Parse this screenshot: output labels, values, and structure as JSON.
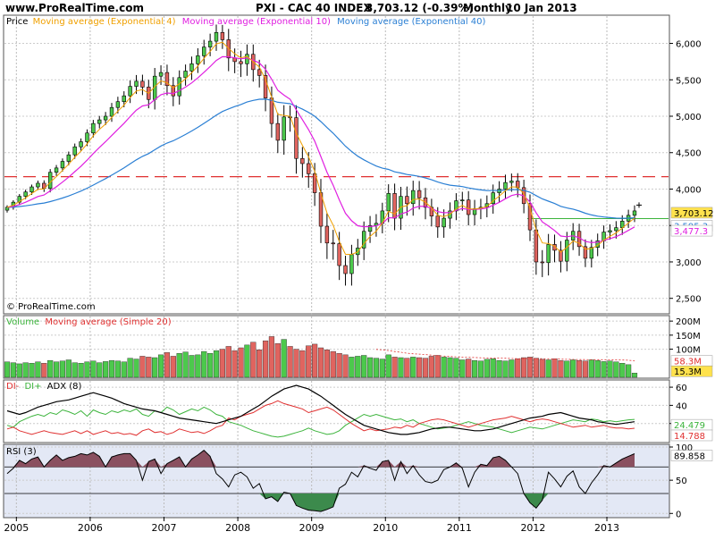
{
  "header": {
    "site": "www.ProRealTime.com",
    "title": "PXI - CAC 40 INDEX",
    "last": "3,703.12 (-0.39%)",
    "period": "Monthly",
    "date": "10 Jan 2013"
  },
  "colors": {
    "up": "#4cc94c",
    "down": "#e0645f",
    "ema4": "#f0a000",
    "ema10": "#e020e0",
    "ema40": "#2a7fd4",
    "resistance": "#e03030",
    "support": "#3cb43c",
    "plus_di": "#3cb43c",
    "minus_di": "#e03030",
    "adx": "#000000",
    "rsi_bg": "#e3e8f5",
    "rsi_fill": "#8a5060"
  },
  "chart_data": [
    {
      "type": "candlestick",
      "panel": "price",
      "legend": [
        "Price",
        "Moving average (Exponential 4)",
        "Moving average (Exponential 10)",
        "Moving average (Exponential 40)"
      ],
      "copyright": "© ProRealTime.com",
      "x_labels": [
        "2005",
        "2006",
        "2007",
        "2008",
        "2009",
        "2010",
        "2011",
        "2012",
        "2013"
      ],
      "y_ticks": [
        {
          "value": 6000,
          "label": "6,000"
        },
        {
          "value": 5500,
          "label": "5,500"
        },
        {
          "value": 5000,
          "label": "5,000"
        },
        {
          "value": 4500,
          "label": "4,500"
        },
        {
          "value": 4000,
          "label": "4,000"
        },
        {
          "value": 3500,
          "label": "3,500"
        },
        {
          "value": 3000,
          "label": "3,000"
        },
        {
          "value": 2500,
          "label": "2,500"
        }
      ],
      "ylim": [
        2300,
        6350
      ],
      "start": "2004-11",
      "close": [
        3750,
        3820,
        3900,
        3960,
        4030,
        4080,
        4010,
        4230,
        4290,
        4380,
        4470,
        4580,
        4650,
        4770,
        4900,
        4950,
        5000,
        5120,
        5200,
        5280,
        5410,
        5480,
        5400,
        5230,
        5550,
        5600,
        5420,
        5280,
        5530,
        5620,
        5720,
        5830,
        5950,
        6030,
        6150,
        6050,
        5800,
        5750,
        5720,
        5850,
        5640,
        5560,
        5250,
        4900,
        4670,
        4990,
        4980,
        4420,
        4350,
        4210,
        3950,
        3490,
        3260,
        3250,
        2950,
        2840,
        3100,
        3190,
        3420,
        3500,
        3530,
        3700,
        3940,
        3600,
        3900,
        3800,
        3980,
        3880,
        3750,
        3630,
        3480,
        3600,
        3700,
        3840,
        3850,
        3650,
        3730,
        3750,
        3800,
        3950,
        4000,
        4090,
        4110,
        4020,
        3800,
        3440,
        3000,
        2990,
        3240,
        3160,
        3010,
        3300,
        3420,
        3210,
        3050,
        3200,
        3290,
        3410,
        3430,
        3470,
        3560,
        3640,
        3700
      ],
      "high_low_pad": [
        60,
        60,
        70,
        70,
        70,
        80,
        90,
        100,
        90,
        90,
        100,
        100,
        100,
        110,
        110,
        120,
        130,
        140,
        150,
        140,
        180,
        190,
        200,
        220,
        250,
        220,
        240,
        260,
        220,
        200,
        220,
        230,
        220,
        230,
        240,
        230,
        330,
        290,
        330,
        300,
        300,
        300,
        330,
        350,
        320,
        360,
        350,
        380,
        350,
        350,
        330,
        420,
        400,
        400,
        360,
        300,
        300,
        280,
        300,
        290,
        280,
        250,
        280,
        300,
        290,
        300,
        300,
        290,
        300,
        260,
        270,
        270,
        260,
        230,
        250,
        270,
        270,
        260,
        250,
        250,
        240,
        240,
        230,
        240,
        240,
        280,
        320,
        360,
        320,
        300,
        280,
        250,
        250,
        230,
        220,
        230,
        220,
        200,
        190,
        200,
        180,
        170,
        170
      ],
      "ema4_end": 3595.3,
      "ema10_end": 3477.3,
      "ema40_end": 3595.3,
      "resistance": 4170,
      "support": 3595.3,
      "value_labels": {
        "last": "3,703.12",
        "ema40": "3,595.3",
        "ema10": "3,477.3"
      }
    },
    {
      "type": "bar",
      "panel": "volume",
      "legend": [
        "Volume",
        "Moving average (Simple 20)"
      ],
      "y_ticks": [
        {
          "value": 200,
          "label": "200M"
        },
        {
          "value": 150,
          "label": "150M"
        },
        {
          "value": 100,
          "label": "100M"
        }
      ],
      "ylim": [
        0,
        210
      ],
      "values": [
        55,
        52,
        48,
        52,
        50,
        55,
        50,
        60,
        55,
        58,
        62,
        52,
        50,
        55,
        58,
        52,
        56,
        60,
        58,
        55,
        68,
        65,
        75,
        72,
        70,
        80,
        88,
        75,
        85,
        90,
        78,
        80,
        92,
        85,
        95,
        100,
        110,
        95,
        105,
        115,
        125,
        98,
        130,
        145,
        120,
        135,
        110,
        100,
        95,
        112,
        118,
        105,
        98,
        92,
        85,
        80,
        72,
        75,
        78,
        70,
        68,
        65,
        80,
        72,
        70,
        68,
        72,
        70,
        68,
        75,
        78,
        72,
        70,
        68,
        62,
        65,
        60,
        58,
        64,
        66,
        60,
        58,
        62,
        66,
        70,
        72,
        68,
        64,
        62,
        66,
        60,
        58,
        62,
        60,
        58,
        62,
        60,
        56,
        58,
        55,
        50,
        45,
        15
      ],
      "ma20_points": [
        {
          "i": 75,
          "v": 80
        },
        {
          "i": 84,
          "v": 70
        },
        {
          "i": 102,
          "v": 58.3
        }
      ],
      "value_labels": {
        "ma": "58.3M",
        "last": "15.3M"
      }
    },
    {
      "type": "line",
      "panel": "adx",
      "legend": [
        "DI-",
        "DI+",
        "ADX (8)"
      ],
      "y_ticks": [
        {
          "value": 60,
          "label": "60"
        },
        {
          "value": 40,
          "label": "40"
        },
        {
          "value": 20,
          "label": "20"
        }
      ],
      "ylim": [
        0,
        65
      ],
      "series": [
        {
          "name": "DI+",
          "points": [
            18,
            16,
            22,
            25,
            28,
            30,
            28,
            32,
            30,
            35,
            33,
            30,
            34,
            28,
            35,
            32,
            30,
            34,
            32,
            35,
            33,
            36,
            30,
            28,
            34,
            32,
            38,
            35,
            30,
            33,
            36,
            34,
            38,
            35,
            30,
            28,
            22,
            20,
            18,
            15,
            12,
            10,
            8,
            6,
            5,
            6,
            8,
            10,
            12,
            15,
            12,
            10,
            8,
            9,
            12,
            18,
            22,
            26,
            30,
            28,
            30,
            28,
            26,
            24,
            25,
            22,
            24,
            20,
            18,
            16,
            14,
            15,
            16,
            18,
            20,
            22,
            20,
            18,
            17,
            16,
            14,
            12,
            10,
            12,
            14,
            16,
            15,
            14,
            16,
            18,
            20,
            22,
            24,
            23,
            22,
            25,
            24,
            22,
            23,
            22,
            23,
            24,
            24.479
          ]
        },
        {
          "name": "DI-",
          "points": [
            14,
            16,
            12,
            10,
            8,
            10,
            12,
            10,
            9,
            8,
            10,
            12,
            9,
            12,
            8,
            10,
            12,
            9,
            10,
            8,
            9,
            7,
            12,
            14,
            10,
            11,
            8,
            10,
            14,
            12,
            10,
            11,
            9,
            12,
            16,
            18,
            26,
            24,
            28,
            30,
            32,
            36,
            40,
            42,
            45,
            42,
            40,
            38,
            36,
            32,
            34,
            36,
            38,
            35,
            30,
            25,
            20,
            16,
            12,
            14,
            12,
            13,
            14,
            16,
            15,
            18,
            16,
            20,
            22,
            24,
            25,
            24,
            22,
            20,
            18,
            16,
            18,
            20,
            22,
            24,
            25,
            26,
            28,
            26,
            24,
            22,
            24,
            25,
            24,
            22,
            20,
            18,
            16,
            17,
            18,
            16,
            17,
            18,
            16,
            15,
            15,
            14,
            14.788
          ]
        },
        {
          "name": "ADX (8)",
          "points": [
            34,
            32,
            30,
            32,
            35,
            38,
            40,
            42,
            44,
            45,
            46,
            48,
            50,
            52,
            54,
            52,
            50,
            48,
            45,
            42,
            40,
            38,
            36,
            35,
            34,
            32,
            30,
            28,
            26,
            25,
            24,
            23,
            22,
            21,
            20,
            22,
            24,
            26,
            28,
            32,
            36,
            40,
            45,
            50,
            54,
            58,
            60,
            62,
            60,
            58,
            54,
            50,
            45,
            40,
            35,
            30,
            26,
            22,
            18,
            16,
            14,
            12,
            10,
            9,
            8,
            8,
            9,
            10,
            12,
            14,
            15,
            16,
            16,
            15,
            14,
            13,
            12,
            12,
            13,
            14,
            16,
            18,
            20,
            22,
            24,
            26,
            27,
            28,
            30,
            31,
            32,
            30,
            28,
            26,
            25,
            24,
            22,
            21,
            20,
            19,
            20,
            21,
            22
          ]
        }
      ],
      "value_labels": {
        "plus_di": "24.479",
        "minus_di": "14.788"
      }
    },
    {
      "type": "line",
      "panel": "rsi",
      "legend": [
        "RSI (3)"
      ],
      "y_ticks": [
        {
          "value": 100,
          "label": "100"
        },
        {
          "value": 50,
          "label": "50"
        },
        {
          "value": 0,
          "label": "0"
        }
      ],
      "levels": [
        70,
        30
      ],
      "ylim": [
        -5,
        100
      ],
      "values": [
        60,
        68,
        80,
        75,
        82,
        85,
        70,
        80,
        88,
        80,
        84,
        86,
        90,
        88,
        92,
        86,
        70,
        85,
        88,
        90,
        90,
        80,
        50,
        78,
        82,
        60,
        75,
        80,
        85,
        70,
        82,
        88,
        95,
        86,
        60,
        52,
        40,
        58,
        62,
        55,
        38,
        45,
        22,
        25,
        18,
        32,
        30,
        12,
        8,
        5,
        4,
        3,
        6,
        10,
        38,
        44,
        62,
        55,
        72,
        68,
        65,
        78,
        80,
        50,
        78,
        60,
        72,
        58,
        48,
        46,
        50,
        66,
        70,
        76,
        68,
        40,
        62,
        74,
        72,
        84,
        86,
        80,
        70,
        60,
        30,
        16,
        8,
        20,
        62,
        52,
        40,
        56,
        64,
        40,
        30,
        46,
        58,
        72,
        70,
        76,
        82,
        86,
        89.858
      ],
      "value_label": "89.858"
    }
  ]
}
